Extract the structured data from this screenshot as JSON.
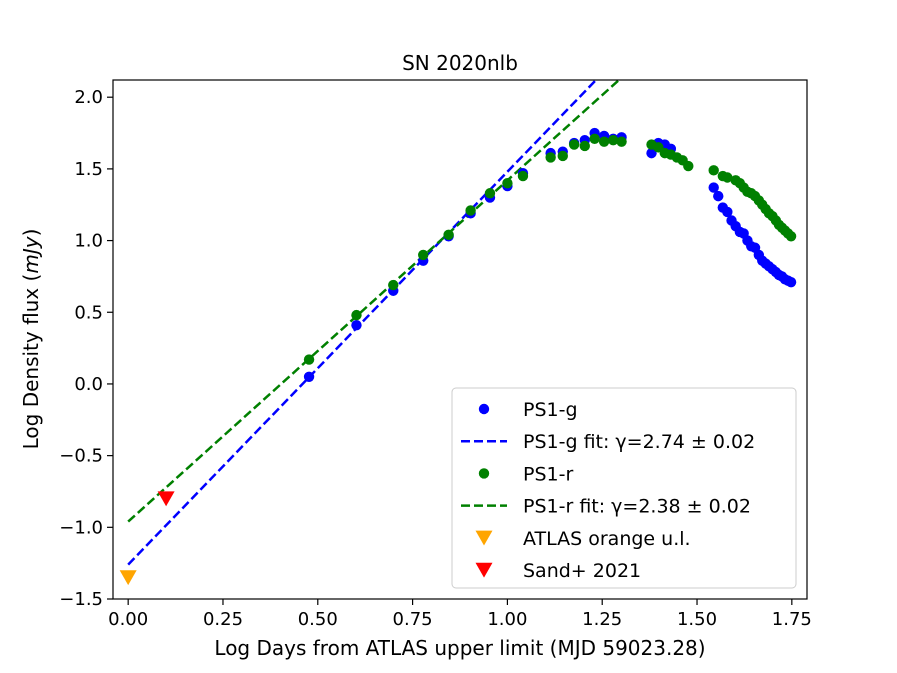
{
  "chart_data": {
    "type": "scatter",
    "title": "SN 2020nlb",
    "xlabel": "Log Days from ATLAS upper limit (MJD 59023.28)",
    "ylabel_prefix": "Log Density flux (",
    "ylabel_unit": "mJy",
    "ylabel_suffix": ")",
    "xlim": [
      -0.04,
      1.79
    ],
    "ylim": [
      -1.5,
      2.12
    ],
    "xticks": [
      0.0,
      0.25,
      0.5,
      0.75,
      1.0,
      1.25,
      1.5,
      1.75
    ],
    "xtick_labels": [
      "0.00",
      "0.25",
      "0.50",
      "0.75",
      "1.00",
      "1.25",
      "1.50",
      "1.75"
    ],
    "yticks": [
      -1.5,
      -1.0,
      -0.5,
      0.0,
      0.5,
      1.0,
      1.5,
      2.0
    ],
    "ytick_labels": [
      "−1.5",
      "−1.0",
      "−0.5",
      "0.0",
      "0.5",
      "1.0",
      "1.5",
      "2.0"
    ],
    "legend_position": "lower-right",
    "series": [
      {
        "name": "PS1-g",
        "kind": "points",
        "color": "#0000ff",
        "x": [
          0.477,
          0.602,
          0.699,
          0.778,
          0.845,
          0.903,
          0.954,
          1.0,
          1.041,
          1.114,
          1.146,
          1.176,
          1.204,
          1.23,
          1.255,
          1.279,
          1.301,
          1.38,
          1.398,
          1.415,
          1.431,
          1.544,
          1.556,
          1.568,
          1.58,
          1.591,
          1.602,
          1.613,
          1.623,
          1.633,
          1.643,
          1.653,
          1.663,
          1.672,
          1.681,
          1.69,
          1.699,
          1.708,
          1.716,
          1.724,
          1.732,
          1.74,
          1.748
        ],
        "y": [
          0.05,
          0.41,
          0.65,
          0.86,
          1.03,
          1.19,
          1.3,
          1.38,
          1.47,
          1.61,
          1.62,
          1.68,
          1.7,
          1.75,
          1.73,
          1.71,
          1.72,
          1.61,
          1.68,
          1.67,
          1.64,
          1.37,
          1.31,
          1.23,
          1.2,
          1.14,
          1.1,
          1.06,
          1.05,
          1.0,
          0.96,
          0.95,
          0.9,
          0.86,
          0.84,
          0.82,
          0.8,
          0.78,
          0.76,
          0.75,
          0.73,
          0.72,
          0.71
        ]
      },
      {
        "name": "PS1-r",
        "kind": "points",
        "color": "#008000",
        "x": [
          0.477,
          0.602,
          0.699,
          0.778,
          0.845,
          0.903,
          0.954,
          1.0,
          1.041,
          1.114,
          1.146,
          1.176,
          1.204,
          1.23,
          1.255,
          1.279,
          1.301,
          1.38,
          1.398,
          1.415,
          1.431,
          1.447,
          1.462,
          1.477,
          1.544,
          1.568,
          1.58,
          1.602,
          1.613,
          1.623,
          1.633,
          1.643,
          1.653,
          1.663,
          1.672,
          1.681,
          1.69,
          1.699,
          1.708,
          1.716,
          1.724,
          1.732,
          1.74,
          1.748
        ],
        "y": [
          0.17,
          0.48,
          0.69,
          0.9,
          1.04,
          1.21,
          1.33,
          1.4,
          1.45,
          1.58,
          1.59,
          1.67,
          1.66,
          1.71,
          1.69,
          1.7,
          1.69,
          1.67,
          1.65,
          1.61,
          1.6,
          1.58,
          1.56,
          1.52,
          1.49,
          1.45,
          1.44,
          1.42,
          1.4,
          1.37,
          1.34,
          1.33,
          1.31,
          1.28,
          1.25,
          1.22,
          1.19,
          1.17,
          1.14,
          1.11,
          1.09,
          1.07,
          1.05,
          1.03
        ]
      },
      {
        "name": "ATLAS orange u.l.",
        "kind": "triangle",
        "color": "#ffa500",
        "x": [
          0.0
        ],
        "y": [
          -1.35
        ]
      },
      {
        "name": "Sand+ 2021",
        "kind": "triangle",
        "color": "#ff0000",
        "x": [
          0.1
        ],
        "y": [
          -0.8
        ]
      },
      {
        "name": "PS1-g fit",
        "kind": "fitline",
        "color": "#0000ff",
        "slope": 2.74,
        "intercept": -1.26
      },
      {
        "name": "PS1-r fit",
        "kind": "fitline",
        "color": "#008000",
        "slope": 2.38,
        "intercept": -0.96
      }
    ],
    "legend": [
      {
        "label": "PS1-g",
        "kind": "point",
        "color": "#0000ff"
      },
      {
        "label": "PS1-g fit: γ=2.74 ± 0.02",
        "kind": "dash",
        "color": "#0000ff"
      },
      {
        "label": "PS1-r",
        "kind": "point",
        "color": "#008000"
      },
      {
        "label": "PS1-r fit: γ=2.38 ± 0.02",
        "kind": "dash",
        "color": "#008000"
      },
      {
        "label": "ATLAS orange u.l.",
        "kind": "triangle",
        "color": "#ffa500"
      },
      {
        "label": "Sand+ 2021",
        "kind": "triangle",
        "color": "#ff0000"
      }
    ]
  }
}
